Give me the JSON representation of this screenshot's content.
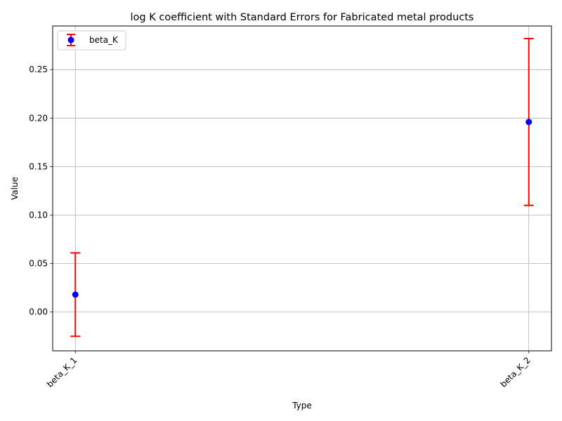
{
  "chart_data": {
    "type": "scatter",
    "title": "log K coefficient with Standard Errors for Fabricated metal products",
    "xlabel": "Type",
    "ylabel": "Value",
    "categories": [
      "beta_K_1",
      "beta_K_2"
    ],
    "series": [
      {
        "name": "beta_K",
        "values": [
          0.018,
          0.196
        ],
        "errors": [
          0.043,
          0.086
        ],
        "marker_color": "#0000ff",
        "error_color": "#ff0000"
      }
    ],
    "ylim": [
      -0.04,
      0.295
    ],
    "yticks": [
      0.0,
      0.05,
      0.1,
      0.15,
      0.2,
      0.25
    ],
    "ytick_labels": [
      "0.00",
      "0.05",
      "0.10",
      "0.15",
      "0.20",
      "0.25"
    ],
    "grid": true,
    "legend_position": "upper-left"
  }
}
